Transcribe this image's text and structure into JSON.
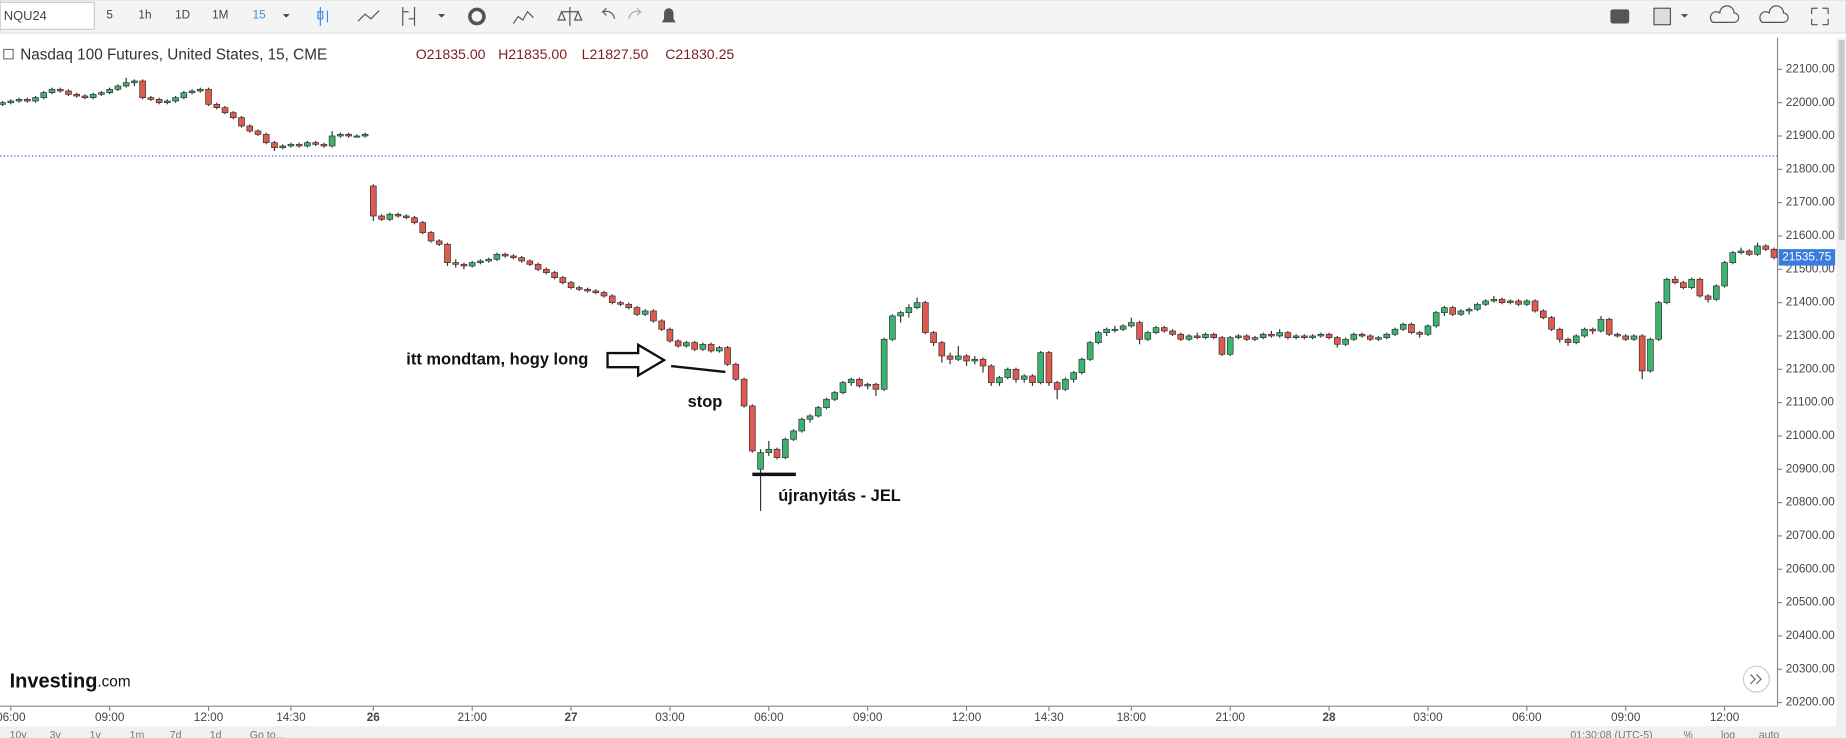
{
  "toolbar": {
    "symbol": "NQU24",
    "intervals": [
      "5",
      "1h",
      "1D",
      "1M",
      "15"
    ]
  },
  "chart_data": {
    "type": "candlestick",
    "title": "Nasdaq 100 Futures, United States, 15, CME",
    "ohlc_legend": [
      "O21835.00",
      "H21835.00",
      "L21827.50",
      "C21830.25"
    ],
    "up_color": "#3cb371",
    "down_color": "#e05a50",
    "line_color": "#333333",
    "hline_color": "#3355cc",
    "hline": 21840,
    "last_price": 21535.75,
    "ylim": [
      20189,
      22195
    ],
    "yticks": [
      {
        "value": 20200,
        "label": "20200.00"
      },
      {
        "value": 20300,
        "label": "20300.00"
      },
      {
        "value": 20400,
        "label": "20400.00"
      },
      {
        "value": 20500,
        "label": "20500.00"
      },
      {
        "value": 20600,
        "label": "20600.00"
      },
      {
        "value": 20700,
        "label": "20700.00"
      },
      {
        "value": 20800,
        "label": "20800.00"
      },
      {
        "value": 20900,
        "label": "20900.00"
      },
      {
        "value": 21000,
        "label": "21000.00"
      },
      {
        "value": 21100,
        "label": "21100.00"
      },
      {
        "value": 21200,
        "label": "21200.00"
      },
      {
        "value": 21300,
        "label": "21300.00"
      },
      {
        "value": 21400,
        "label": "21400.00"
      },
      {
        "value": 21500,
        "label": "21500.00"
      },
      {
        "value": 21600,
        "label": "21600.00"
      },
      {
        "value": 21700,
        "label": "21700.00"
      },
      {
        "value": 21800,
        "label": "21800.00"
      },
      {
        "value": 21900,
        "label": "21900.00"
      },
      {
        "value": 22000,
        "label": "22000.00"
      },
      {
        "value": 22100,
        "label": "22100.00"
      }
    ],
    "xticks": [
      {
        "value": 1,
        "label": "06:00"
      },
      {
        "value": 13,
        "label": "09:00"
      },
      {
        "value": 25,
        "label": "12:00"
      },
      {
        "value": 35,
        "label": "14:30"
      },
      {
        "value": 45,
        "label": "26"
      },
      {
        "value": 57,
        "label": "21:00"
      },
      {
        "value": 69,
        "label": "27"
      },
      {
        "value": 81,
        "label": "03:00"
      },
      {
        "value": 93,
        "label": "06:00"
      },
      {
        "value": 105,
        "label": "09:00"
      },
      {
        "value": 117,
        "label": "12:00"
      },
      {
        "value": 127,
        "label": "14:30"
      },
      {
        "value": 137,
        "label": "18:00"
      },
      {
        "value": 149,
        "label": "21:00"
      },
      {
        "value": 161,
        "label": "28"
      },
      {
        "value": 173,
        "label": "03:00"
      },
      {
        "value": 185,
        "label": "06:00"
      },
      {
        "value": 197,
        "label": "09:00"
      },
      {
        "value": 209,
        "label": "12:00"
      }
    ],
    "ohlc": [
      [
        21995,
        22005,
        21990,
        22000
      ],
      [
        22000,
        22010,
        21995,
        22005
      ],
      [
        22005,
        22015,
        22000,
        22010
      ],
      [
        22010,
        22015,
        22000,
        22005
      ],
      [
        22005,
        22020,
        22000,
        22015
      ],
      [
        22015,
        22035,
        22010,
        22030
      ],
      [
        22030,
        22045,
        22025,
        22040
      ],
      [
        22040,
        22045,
        22030,
        22035
      ],
      [
        22035,
        22040,
        22020,
        22025
      ],
      [
        22025,
        22030,
        22015,
        22020
      ],
      [
        22020,
        22025,
        22010,
        22015
      ],
      [
        22015,
        22030,
        22010,
        22025
      ],
      [
        22025,
        22035,
        22020,
        22030
      ],
      [
        22030,
        22045,
        22025,
        22040
      ],
      [
        22040,
        22055,
        22035,
        22050
      ],
      [
        22050,
        22075,
        22045,
        22060
      ],
      [
        22060,
        22070,
        22050,
        22065
      ],
      [
        22065,
        22070,
        22010,
        22015
      ],
      [
        22015,
        22020,
        22005,
        22010
      ],
      [
        22010,
        22015,
        21995,
        22000
      ],
      [
        22000,
        22010,
        21995,
        22005
      ],
      [
        22005,
        22020,
        22000,
        22015
      ],
      [
        22015,
        22035,
        22010,
        22030
      ],
      [
        22030,
        22040,
        22025,
        22035
      ],
      [
        22035,
        22045,
        22030,
        22040
      ],
      [
        22040,
        22045,
        21990,
        21995
      ],
      [
        21995,
        22000,
        21980,
        21985
      ],
      [
        21985,
        21990,
        21965,
        21970
      ],
      [
        21970,
        21975,
        21950,
        21955
      ],
      [
        21955,
        21960,
        21925,
        21930
      ],
      [
        21930,
        21935,
        21910,
        21915
      ],
      [
        21915,
        21920,
        21900,
        21905
      ],
      [
        21905,
        21910,
        21875,
        21880
      ],
      [
        21880,
        21885,
        21855,
        21865
      ],
      [
        21865,
        21875,
        21860,
        21870
      ],
      [
        21870,
        21880,
        21865,
        21875
      ],
      [
        21875,
        21880,
        21865,
        21870
      ],
      [
        21870,
        21885,
        21865,
        21880
      ],
      [
        21880,
        21885,
        21870,
        21875
      ],
      [
        21875,
        21880,
        21865,
        21870
      ],
      [
        21870,
        21915,
        21865,
        21900
      ],
      [
        21900,
        21910,
        21895,
        21905
      ],
      [
        21905,
        21910,
        21895,
        21900
      ],
      [
        21900,
        21905,
        21895,
        21900
      ],
      [
        21900,
        21910,
        21895,
        21905
      ],
      [
        21750,
        21755,
        21645,
        21660
      ],
      [
        21660,
        21665,
        21645,
        21650
      ],
      [
        21650,
        21670,
        21645,
        21665
      ],
      [
        21665,
        21670,
        21655,
        21660
      ],
      [
        21660,
        21665,
        21650,
        21655
      ],
      [
        21655,
        21660,
        21635,
        21640
      ],
      [
        21640,
        21645,
        21605,
        21610
      ],
      [
        21610,
        21615,
        21580,
        21585
      ],
      [
        21585,
        21590,
        21570,
        21575
      ],
      [
        21575,
        21580,
        21510,
        21520
      ],
      [
        21520,
        21530,
        21505,
        21515
      ],
      [
        21515,
        21520,
        21500,
        21510
      ],
      [
        21510,
        21525,
        21505,
        21520
      ],
      [
        21520,
        21530,
        21515,
        21525
      ],
      [
        21525,
        21535,
        21520,
        21530
      ],
      [
        21530,
        21550,
        21525,
        21545
      ],
      [
        21545,
        21550,
        21535,
        21540
      ],
      [
        21540,
        21545,
        21530,
        21535
      ],
      [
        21535,
        21540,
        21520,
        21525
      ],
      [
        21525,
        21530,
        21510,
        21515
      ],
      [
        21515,
        21520,
        21495,
        21500
      ],
      [
        21500,
        21505,
        21485,
        21490
      ],
      [
        21490,
        21495,
        21470,
        21475
      ],
      [
        21475,
        21480,
        21455,
        21460
      ],
      [
        21460,
        21465,
        21440,
        21445
      ],
      [
        21445,
        21450,
        21435,
        21440
      ],
      [
        21440,
        21445,
        21430,
        21435
      ],
      [
        21435,
        21440,
        21425,
        21430
      ],
      [
        21430,
        21435,
        21415,
        21420
      ],
      [
        21420,
        21425,
        21395,
        21400
      ],
      [
        21400,
        21405,
        21390,
        21395
      ],
      [
        21395,
        21400,
        21380,
        21385
      ],
      [
        21385,
        21390,
        21360,
        21365
      ],
      [
        21365,
        21380,
        21360,
        21375
      ],
      [
        21375,
        21380,
        21340,
        21345
      ],
      [
        21345,
        21350,
        21315,
        21320
      ],
      [
        21320,
        21325,
        21280,
        21285
      ],
      [
        21285,
        21290,
        21265,
        21270
      ],
      [
        21270,
        21285,
        21265,
        21280
      ],
      [
        21280,
        21285,
        21255,
        21260
      ],
      [
        21260,
        21280,
        21255,
        21275
      ],
      [
        21275,
        21280,
        21250,
        21255
      ],
      [
        21255,
        21270,
        21250,
        21265
      ],
      [
        21265,
        21270,
        21210,
        21215
      ],
      [
        21215,
        21220,
        21165,
        21170
      ],
      [
        21170,
        21175,
        21085,
        21090
      ],
      [
        21090,
        21095,
        20950,
        20955
      ],
      [
        20900,
        20960,
        20775,
        20950
      ],
      [
        20950,
        20985,
        20940,
        20960
      ],
      [
        20960,
        20965,
        20930,
        20935
      ],
      [
        20935,
        20995,
        20930,
        20990
      ],
      [
        20990,
        21020,
        20985,
        21015
      ],
      [
        21015,
        21055,
        21010,
        21050
      ],
      [
        21050,
        21065,
        21040,
        21060
      ],
      [
        21060,
        21090,
        21055,
        21085
      ],
      [
        21085,
        21115,
        21080,
        21110
      ],
      [
        21110,
        21135,
        21105,
        21130
      ],
      [
        21130,
        21165,
        21125,
        21160
      ],
      [
        21160,
        21175,
        21150,
        21170
      ],
      [
        21170,
        21175,
        21145,
        21150
      ],
      [
        21150,
        21160,
        21140,
        21155
      ],
      [
        21155,
        21160,
        21120,
        21140
      ],
      [
        21140,
        21295,
        21135,
        21290
      ],
      [
        21290,
        21365,
        21285,
        21360
      ],
      [
        21360,
        21375,
        21340,
        21370
      ],
      [
        21370,
        21395,
        21355,
        21385
      ],
      [
        21385,
        21415,
        21380,
        21400
      ],
      [
        21400,
        21405,
        21305,
        21310
      ],
      [
        21310,
        21315,
        21270,
        21280
      ],
      [
        21280,
        21285,
        21220,
        21240
      ],
      [
        21240,
        21250,
        21215,
        21230
      ],
      [
        21230,
        21270,
        21225,
        21240
      ],
      [
        21240,
        21245,
        21210,
        21225
      ],
      [
        21225,
        21240,
        21215,
        21230
      ],
      [
        21230,
        21235,
        21190,
        21210
      ],
      [
        21210,
        21215,
        21150,
        21160
      ],
      [
        21160,
        21180,
        21150,
        21175
      ],
      [
        21175,
        21205,
        21170,
        21200
      ],
      [
        21200,
        21205,
        21160,
        21170
      ],
      [
        21170,
        21185,
        21160,
        21180
      ],
      [
        21180,
        21185,
        21150,
        21160
      ],
      [
        21160,
        21255,
        21155,
        21250
      ],
      [
        21250,
        21255,
        21150,
        21160
      ],
      [
        21160,
        21165,
        21110,
        21140
      ],
      [
        21140,
        21175,
        21135,
        21170
      ],
      [
        21170,
        21195,
        21160,
        21190
      ],
      [
        21190,
        21235,
        21185,
        21230
      ],
      [
        21230,
        21285,
        21225,
        21280
      ],
      [
        21280,
        21315,
        21275,
        21310
      ],
      [
        21310,
        21325,
        21300,
        21320
      ],
      [
        21320,
        21330,
        21310,
        21320
      ],
      [
        21320,
        21335,
        21315,
        21330
      ],
      [
        21330,
        21355,
        21325,
        21340
      ],
      [
        21340,
        21345,
        21275,
        21290
      ],
      [
        21290,
        21315,
        21285,
        21310
      ],
      [
        21310,
        21330,
        21305,
        21325
      ],
      [
        21325,
        21330,
        21310,
        21315
      ],
      [
        21315,
        21320,
        21300,
        21305
      ],
      [
        21305,
        21310,
        21285,
        21290
      ],
      [
        21290,
        21305,
        21285,
        21300
      ],
      [
        21300,
        21310,
        21290,
        21295
      ],
      [
        21295,
        21310,
        21290,
        21305
      ],
      [
        21305,
        21310,
        21290,
        21295
      ],
      [
        21295,
        21300,
        21240,
        21245
      ],
      [
        21245,
        21300,
        21240,
        21295
      ],
      [
        21295,
        21305,
        21290,
        21300
      ],
      [
        21300,
        21305,
        21285,
        21290
      ],
      [
        21290,
        21300,
        21285,
        21295
      ],
      [
        21295,
        21310,
        21290,
        21305
      ],
      [
        21305,
        21315,
        21295,
        21300
      ],
      [
        21300,
        21320,
        21295,
        21310
      ],
      [
        21310,
        21315,
        21290,
        21295
      ],
      [
        21295,
        21305,
        21290,
        21300
      ],
      [
        21300,
        21305,
        21290,
        21295
      ],
      [
        21295,
        21305,
        21290,
        21300
      ],
      [
        21300,
        21310,
        21295,
        21305
      ],
      [
        21305,
        21310,
        21290,
        21295
      ],
      [
        21295,
        21300,
        21265,
        21275
      ],
      [
        21275,
        21295,
        21270,
        21290
      ],
      [
        21290,
        21310,
        21285,
        21305
      ],
      [
        21305,
        21310,
        21295,
        21300
      ],
      [
        21300,
        21305,
        21285,
        21290
      ],
      [
        21290,
        21300,
        21285,
        21295
      ],
      [
        21295,
        21310,
        21290,
        21305
      ],
      [
        21305,
        21325,
        21300,
        21320
      ],
      [
        21320,
        21340,
        21315,
        21335
      ],
      [
        21335,
        21340,
        21305,
        21310
      ],
      [
        21310,
        21315,
        21295,
        21305
      ],
      [
        21305,
        21335,
        21300,
        21330
      ],
      [
        21330,
        21375,
        21325,
        21370
      ],
      [
        21370,
        21390,
        21360,
        21385
      ],
      [
        21385,
        21390,
        21360,
        21365
      ],
      [
        21365,
        21380,
        21360,
        21375
      ],
      [
        21375,
        21385,
        21365,
        21380
      ],
      [
        21380,
        21400,
        21375,
        21395
      ],
      [
        21395,
        21410,
        21390,
        21405
      ],
      [
        21405,
        21420,
        21400,
        21410
      ],
      [
        21410,
        21415,
        21395,
        21400
      ],
      [
        21400,
        21410,
        21395,
        21405
      ],
      [
        21405,
        21410,
        21390,
        21395
      ],
      [
        21395,
        21410,
        21390,
        21405
      ],
      [
        21405,
        21410,
        21370,
        21375
      ],
      [
        21375,
        21380,
        21350,
        21355
      ],
      [
        21355,
        21360,
        21315,
        21320
      ],
      [
        21320,
        21325,
        21280,
        21290
      ],
      [
        21290,
        21295,
        21270,
        21280
      ],
      [
        21280,
        21305,
        21275,
        21300
      ],
      [
        21300,
        21325,
        21295,
        21320
      ],
      [
        21320,
        21325,
        21305,
        21315
      ],
      [
        21315,
        21360,
        21310,
        21350
      ],
      [
        21350,
        21355,
        21300,
        21305
      ],
      [
        21305,
        21310,
        21295,
        21300
      ],
      [
        21300,
        21305,
        21285,
        21290
      ],
      [
        21290,
        21305,
        21285,
        21300
      ],
      [
        21300,
        21305,
        21170,
        21195
      ],
      [
        21195,
        21295,
        21190,
        21290
      ],
      [
        21290,
        21405,
        21285,
        21400
      ],
      [
        21400,
        21475,
        21395,
        21470
      ],
      [
        21470,
        21480,
        21455,
        21460
      ],
      [
        21460,
        21465,
        21440,
        21445
      ],
      [
        21445,
        21475,
        21440,
        21470
      ],
      [
        21470,
        21475,
        21415,
        21420
      ],
      [
        21420,
        21425,
        21400,
        21410
      ],
      [
        21410,
        21455,
        21405,
        21450
      ],
      [
        21450,
        21525,
        21445,
        21520
      ],
      [
        21520,
        21555,
        21515,
        21550
      ],
      [
        21550,
        21565,
        21545,
        21555
      ],
      [
        21555,
        21560,
        21540,
        21545
      ],
      [
        21545,
        21580,
        21540,
        21570
      ],
      [
        21570,
        21575,
        21555,
        21560
      ],
      [
        21560,
        21565,
        21530,
        21535.75
      ]
    ],
    "annotations": [
      "itt mondtam, hogy long",
      "stop",
      "újranyitás - JEL"
    ]
  },
  "logo": {
    "brand": "Investing",
    "suffix": ".com"
  },
  "footer": {
    "ranges": [
      "10y",
      "3y",
      "1y",
      "1m",
      "7d",
      "1d",
      "Go to..."
    ],
    "clock": "01:30:08 (UTC-5)",
    "scales": [
      "%",
      "log",
      "auto"
    ]
  }
}
